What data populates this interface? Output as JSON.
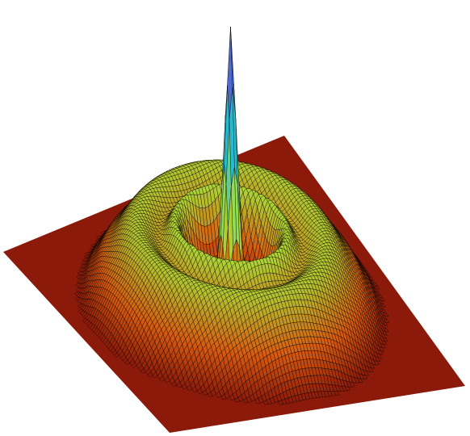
{
  "figure": {
    "kind": "3d-surface-plot",
    "shape": "radially symmetric surface with a tall central peak surrounded by concentric ring ridges on a flat square base",
    "colormap": {
      "low": "#8b1a0a",
      "mid_low": "#d85a10",
      "mid": "#a8e23a",
      "mid_high": "#22b8d8",
      "high": "#7a1fb8"
    },
    "mesh_line_color": "#000000",
    "background": "#ffffff",
    "base_color": "#8b1a0a",
    "rings": [
      {
        "radius_units": 0.0,
        "relative_height": 1.0,
        "width_units": 0.9
      },
      {
        "radius_units": 3.2,
        "relative_height": 0.22,
        "width_units": 0.55
      },
      {
        "radius_units": 5.6,
        "relative_height": 0.3,
        "width_units": 1.6
      }
    ]
  }
}
